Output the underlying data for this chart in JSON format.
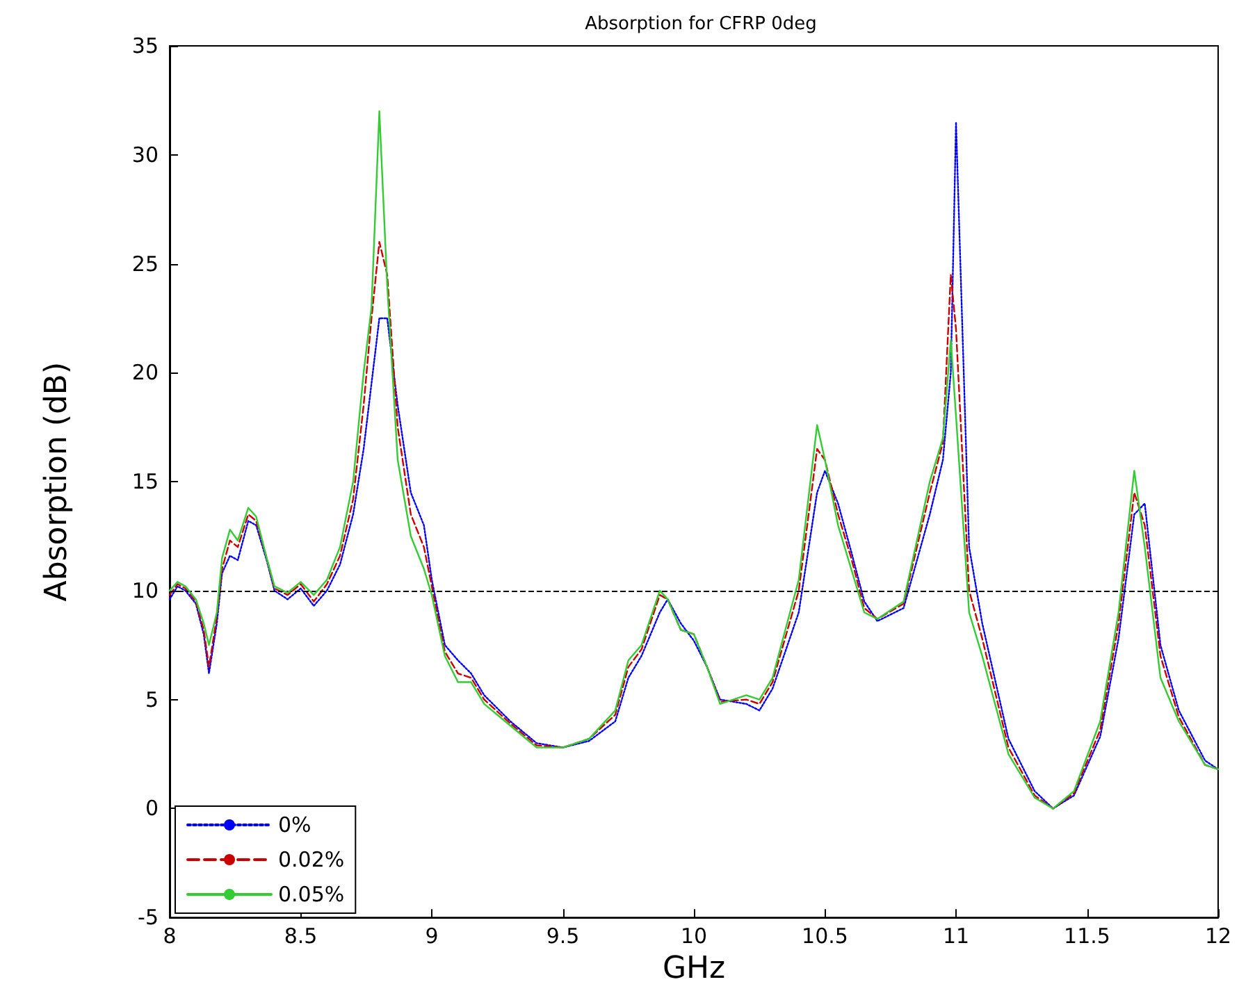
{
  "chart_data": {
    "type": "line",
    "title": "Absorption for CFRP 0deg",
    "xlabel": "GHz",
    "ylabel": "Absorption (dB)",
    "x": [
      8.0,
      8.03,
      8.06,
      8.1,
      8.13,
      8.15,
      8.18,
      8.2,
      8.23,
      8.26,
      8.3,
      8.33,
      8.37,
      8.4,
      8.45,
      8.5,
      8.55,
      8.6,
      8.65,
      8.7,
      8.74,
      8.77,
      8.8,
      8.83,
      8.87,
      8.92,
      8.97,
      9.0,
      9.05,
      9.1,
      9.15,
      9.2,
      9.3,
      9.4,
      9.5,
      9.6,
      9.7,
      9.75,
      9.8,
      9.87,
      9.9,
      9.95,
      10.0,
      10.05,
      10.1,
      10.2,
      10.25,
      10.3,
      10.4,
      10.47,
      10.5,
      10.55,
      10.6,
      10.65,
      10.7,
      10.8,
      10.9,
      10.95,
      10.98,
      11.0,
      11.05,
      11.1,
      11.2,
      11.3,
      11.37,
      11.45,
      11.55,
      11.62,
      11.68,
      11.72,
      11.78,
      11.85,
      11.95,
      12.0
    ],
    "series": [
      {
        "name": "0%",
        "color": "#0000ff",
        "line_style": "dotted",
        "values": [
          9.6,
          10.2,
          10.0,
          9.4,
          8.0,
          6.2,
          8.5,
          10.8,
          11.6,
          11.4,
          13.2,
          13.0,
          11.4,
          10.0,
          9.6,
          10.1,
          9.3,
          10.0,
          11.2,
          13.5,
          16.5,
          19.5,
          22.5,
          22.5,
          18.5,
          14.5,
          13.0,
          10.5,
          7.5,
          6.8,
          6.2,
          5.2,
          4.0,
          3.0,
          2.8,
          3.1,
          4.0,
          6.0,
          7.0,
          9.0,
          9.6,
          8.5,
          7.7,
          6.5,
          5.0,
          4.8,
          4.5,
          5.5,
          9.0,
          14.5,
          15.5,
          14.0,
          11.8,
          9.5,
          8.6,
          9.2,
          13.5,
          16.0,
          20.0,
          31.5,
          12.0,
          8.5,
          3.2,
          0.8,
          0.0,
          0.6,
          3.3,
          7.8,
          13.5,
          14.0,
          7.5,
          4.5,
          2.2,
          1.8
        ]
      },
      {
        "name": "0.02%",
        "color": "#cc0000",
        "line_style": "dashed",
        "values": [
          9.8,
          10.3,
          10.1,
          9.5,
          8.2,
          6.5,
          8.8,
          11.0,
          12.3,
          12.0,
          13.5,
          13.2,
          11.5,
          10.1,
          9.8,
          10.3,
          9.5,
          10.3,
          11.6,
          14.2,
          18.5,
          22.5,
          26.0,
          24.5,
          17.5,
          13.5,
          12.0,
          10.2,
          7.2,
          6.2,
          6.0,
          5.0,
          3.9,
          2.9,
          2.8,
          3.2,
          4.3,
          6.5,
          7.3,
          9.8,
          9.6,
          8.2,
          8.0,
          6.5,
          4.9,
          5.0,
          4.8,
          5.8,
          10.0,
          16.5,
          16.0,
          13.5,
          11.5,
          9.2,
          8.7,
          9.4,
          14.5,
          16.8,
          24.5,
          22.0,
          10.0,
          7.8,
          2.8,
          0.6,
          0.0,
          0.7,
          3.6,
          8.5,
          14.5,
          13.0,
          7.0,
          4.2,
          2.0,
          1.8
        ]
      },
      {
        "name": "0.05%",
        "color": "#33cc33",
        "line_style": "solid",
        "values": [
          10.0,
          10.4,
          10.2,
          9.6,
          8.5,
          7.5,
          9.0,
          11.5,
          12.8,
          12.3,
          13.8,
          13.4,
          11.5,
          10.2,
          9.9,
          10.4,
          9.8,
          10.5,
          12.0,
          15.0,
          20.0,
          23.0,
          32.0,
          24.0,
          16.0,
          12.5,
          11.0,
          9.8,
          7.0,
          5.8,
          5.8,
          4.8,
          3.8,
          2.8,
          2.8,
          3.2,
          4.5,
          6.8,
          7.5,
          10.0,
          9.6,
          8.2,
          8.0,
          6.5,
          4.8,
          5.2,
          5.0,
          6.0,
          10.5,
          17.6,
          16.0,
          13.0,
          11.0,
          9.0,
          8.7,
          9.5,
          15.0,
          17.0,
          21.5,
          18.0,
          9.0,
          7.0,
          2.5,
          0.5,
          0.0,
          0.8,
          4.0,
          9.0,
          15.5,
          12.0,
          6.0,
          4.0,
          2.0,
          1.8
        ]
      }
    ],
    "xlim": [
      8,
      12
    ],
    "xticks": [
      8,
      8.5,
      9,
      9.5,
      10,
      10.5,
      11,
      11.5,
      12
    ],
    "ylim": [
      -5,
      35
    ],
    "yticks": [
      -5,
      0,
      5,
      10,
      15,
      20,
      25,
      30,
      35
    ],
    "ref_lines": [
      {
        "axis": "y",
        "value": 10,
        "color": "#000000",
        "line_style": "dashed"
      }
    ],
    "legend": "bottom left",
    "grid": false,
    "marker": "none"
  }
}
